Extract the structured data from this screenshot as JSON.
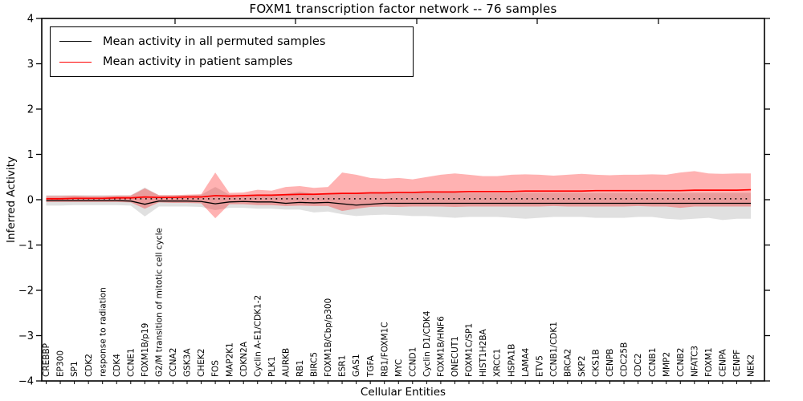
{
  "title": "FOXM1 transcription factor network -- 76 samples",
  "legend": {
    "items": [
      {
        "label": "Mean activity in all permuted samples",
        "color": "#000000"
      },
      {
        "label": "Mean activity in patient samples",
        "color": "#ff0000"
      }
    ]
  },
  "chart_data": {
    "type": "line",
    "title": "FOXM1 transcription factor network -- 76 samples",
    "xlabel": "Cellular Entities",
    "ylabel": "Inferred Activity",
    "ylim": [
      -4,
      4
    ],
    "yticks": [
      4,
      3,
      2,
      1,
      0,
      -1,
      -2,
      -3,
      -4
    ],
    "grid": false,
    "legend_position": "upper left",
    "categories": [
      "CREBBP",
      "EP300",
      "SP1",
      "CDK2",
      "response to radiation",
      "CDK4",
      "CCNE1",
      "FOXM1B/p19",
      "G2/M transition of mitotic cell cycle",
      "CCNA2",
      "GSK3A",
      "CHEK2",
      "FOS",
      "MAP2K1",
      "CDKN2A",
      "Cyclin A-E1/CDK1-2",
      "PLK1",
      "AURKB",
      "RB1",
      "BIRC5",
      "FOXM1B/Cbp/p300",
      "ESR1",
      "GAS1",
      "TGFA",
      "RB1/FOXM1C",
      "MYC",
      "CCND1",
      "Cyclin D1/CDK4",
      "FOXM1B/HNF6",
      "ONECUT1",
      "FOXM1C/SP1",
      "HIST1H2BA",
      "XRCC1",
      "HSPA1B",
      "LAMA4",
      "ETV5",
      "CCNB1/CDK1",
      "BRCA2",
      "SKP2",
      "CKS1B",
      "CENPB",
      "CDC25B",
      "CDC2",
      "CCNB1",
      "MMP2",
      "CCNB2",
      "NFATC3",
      "FOXM1",
      "CENPA",
      "CENPF",
      "NEK2"
    ],
    "series": [
      {
        "name": "Mean activity in all permuted samples",
        "color": "#000000",
        "style": "solid",
        "width": 1.3,
        "values": [
          -0.02,
          -0.02,
          -0.02,
          -0.02,
          -0.02,
          -0.02,
          -0.03,
          -0.1,
          -0.03,
          -0.03,
          -0.03,
          -0.04,
          -0.09,
          -0.05,
          -0.04,
          -0.05,
          -0.05,
          -0.08,
          -0.06,
          -0.07,
          -0.06,
          -0.09,
          -0.12,
          -0.1,
          -0.08,
          -0.08,
          -0.08,
          -0.08,
          -0.08,
          -0.08,
          -0.08,
          -0.08,
          -0.08,
          -0.08,
          -0.08,
          -0.08,
          -0.08,
          -0.08,
          -0.08,
          -0.08,
          -0.08,
          -0.08,
          -0.08,
          -0.08,
          -0.08,
          -0.08,
          -0.08,
          -0.08,
          -0.08,
          -0.08,
          -0.08
        ]
      },
      {
        "name": "Mean activity in patient samples",
        "color": "#ff0000",
        "style": "solid",
        "width": 1.7,
        "values": [
          0.02,
          0.02,
          0.03,
          0.03,
          0.03,
          0.04,
          0.04,
          0.06,
          0.05,
          0.05,
          0.06,
          0.06,
          0.09,
          0.08,
          0.09,
          0.1,
          0.1,
          0.11,
          0.12,
          0.12,
          0.13,
          0.14,
          0.14,
          0.15,
          0.15,
          0.16,
          0.16,
          0.17,
          0.17,
          0.17,
          0.18,
          0.18,
          0.18,
          0.18,
          0.19,
          0.19,
          0.19,
          0.19,
          0.19,
          0.2,
          0.2,
          0.2,
          0.2,
          0.2,
          0.2,
          0.2,
          0.21,
          0.21,
          0.21,
          0.21,
          0.22
        ]
      },
      {
        "name": "Permuted reference (dotted)",
        "color": "#000000",
        "style": "dotted",
        "width": 1.6,
        "constant_value": 0.02
      }
    ],
    "bands": [
      {
        "name": "Permuted samples spread",
        "color": "#000000",
        "opacity": 0.12,
        "upper": [
          0.1,
          0.1,
          0.1,
          0.1,
          0.1,
          0.1,
          0.1,
          0.27,
          0.1,
          0.1,
          0.1,
          0.11,
          0.28,
          0.11,
          0.11,
          0.12,
          0.12,
          0.13,
          0.18,
          0.13,
          0.13,
          0.15,
          0.15,
          0.14,
          0.14,
          0.15,
          0.15,
          0.15,
          0.15,
          0.15,
          0.15,
          0.15,
          0.15,
          0.15,
          0.15,
          0.15,
          0.15,
          0.15,
          0.15,
          0.15,
          0.15,
          0.15,
          0.15,
          0.15,
          0.15,
          0.15,
          0.15,
          0.15,
          0.15,
          0.15,
          0.15
        ],
        "lower": [
          -0.13,
          -0.13,
          -0.12,
          -0.12,
          -0.12,
          -0.12,
          -0.13,
          -0.37,
          -0.15,
          -0.15,
          -0.15,
          -0.16,
          -0.23,
          -0.18,
          -0.18,
          -0.2,
          -0.2,
          -0.22,
          -0.22,
          -0.28,
          -0.26,
          -0.32,
          -0.36,
          -0.34,
          -0.33,
          -0.34,
          -0.36,
          -0.36,
          -0.38,
          -0.4,
          -0.38,
          -0.38,
          -0.38,
          -0.4,
          -0.42,
          -0.4,
          -0.38,
          -0.38,
          -0.38,
          -0.4,
          -0.4,
          -0.4,
          -0.38,
          -0.38,
          -0.42,
          -0.44,
          -0.42,
          -0.4,
          -0.45,
          -0.42,
          -0.42
        ]
      },
      {
        "name": "Patient samples spread",
        "color": "#ff0000",
        "opacity": 0.3,
        "upper": [
          0.08,
          0.08,
          0.09,
          0.08,
          0.08,
          0.09,
          0.09,
          0.25,
          0.1,
          0.1,
          0.11,
          0.12,
          0.6,
          0.15,
          0.16,
          0.22,
          0.2,
          0.28,
          0.3,
          0.26,
          0.28,
          0.6,
          0.55,
          0.48,
          0.46,
          0.48,
          0.45,
          0.5,
          0.55,
          0.58,
          0.55,
          0.52,
          0.52,
          0.55,
          0.56,
          0.55,
          0.53,
          0.55,
          0.57,
          0.55,
          0.54,
          0.55,
          0.55,
          0.56,
          0.55,
          0.6,
          0.63,
          0.58,
          0.57,
          0.58,
          0.58
        ],
        "lower": [
          -0.05,
          -0.05,
          -0.05,
          -0.05,
          -0.05,
          -0.05,
          -0.06,
          -0.2,
          -0.06,
          -0.07,
          -0.07,
          -0.08,
          -0.41,
          -0.1,
          -0.1,
          -0.12,
          -0.12,
          -0.14,
          -0.13,
          -0.14,
          -0.14,
          -0.25,
          -0.2,
          -0.16,
          -0.15,
          -0.16,
          -0.15,
          -0.15,
          -0.15,
          -0.16,
          -0.15,
          -0.15,
          -0.15,
          -0.15,
          -0.15,
          -0.15,
          -0.14,
          -0.15,
          -0.15,
          -0.15,
          -0.15,
          -0.15,
          -0.14,
          -0.15,
          -0.15,
          -0.18,
          -0.15,
          -0.15,
          -0.15,
          -0.15,
          -0.15
        ]
      }
    ]
  }
}
